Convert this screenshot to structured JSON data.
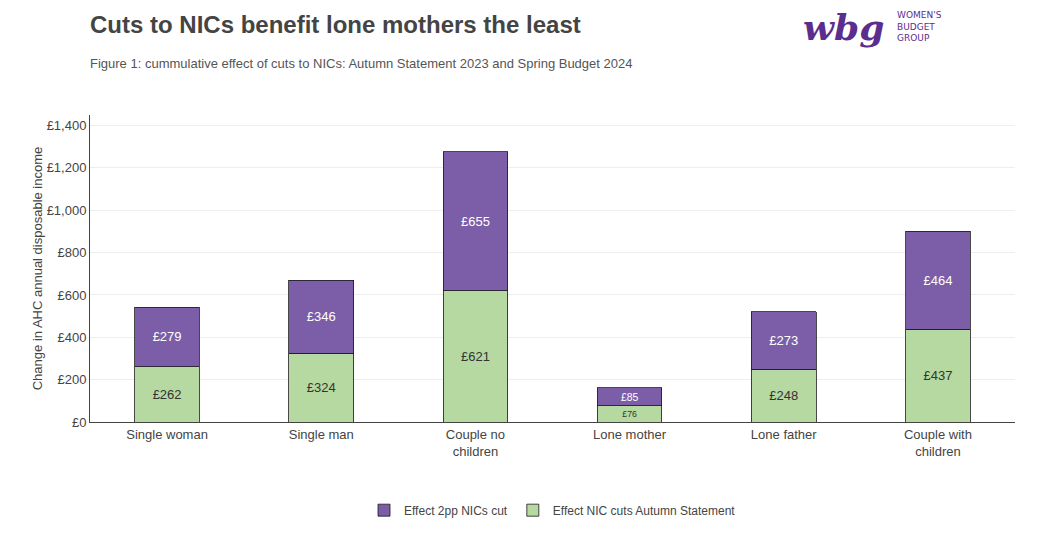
{
  "chart_data": {
    "type": "bar",
    "title": "Cuts to NICs benefit lone mothers the least",
    "subtitle": "Figure 1: cummulative effect of cuts to NICs: Autumn Statement 2023 and Spring Budget 2024",
    "y_label": "Change in AHC annual disposable income",
    "categories": [
      "Single woman",
      "Single man",
      "Couple no\nchildren",
      "Lone mother",
      "Lone father",
      "Couple with\nchildren"
    ],
    "series": [
      {
        "name": "Effect NIC cuts Autumn Statement",
        "color": "#b5d9a0",
        "values": [
          262,
          324,
          621,
          76,
          248,
          437
        ],
        "value_labels": [
          "£262",
          "£324",
          "£621",
          "£76",
          "£248",
          "£437"
        ]
      },
      {
        "name": "Effect 2pp NICs cut",
        "color": "#7b5ea7",
        "values": [
          279,
          346,
          655,
          85,
          273,
          464
        ],
        "value_labels": [
          "£279",
          "£346",
          "£655",
          "£85",
          "£273",
          "£464"
        ]
      }
    ],
    "stacked": true,
    "data_labels": true,
    "ylim": [
      0,
      1450
    ],
    "yticks": [
      {
        "value": 0,
        "label": "£0"
      },
      {
        "value": 200,
        "label": "£200"
      },
      {
        "value": 400,
        "label": "£400"
      },
      {
        "value": 600,
        "label": "£600"
      },
      {
        "value": 800,
        "label": "£800"
      },
      {
        "value": 1000,
        "label": "£1,000"
      },
      {
        "value": 1200,
        "label": "£1,200"
      },
      {
        "value": 1400,
        "label": "£1,400"
      }
    ],
    "grid": true,
    "legend": "bottom",
    "annotations": [
      {
        "text": "wbg",
        "color": "#5b2d8e"
      },
      {
        "text": "WOMEN'S\nBUDGET\nGROUP",
        "color": "#5b2d8e"
      }
    ]
  }
}
